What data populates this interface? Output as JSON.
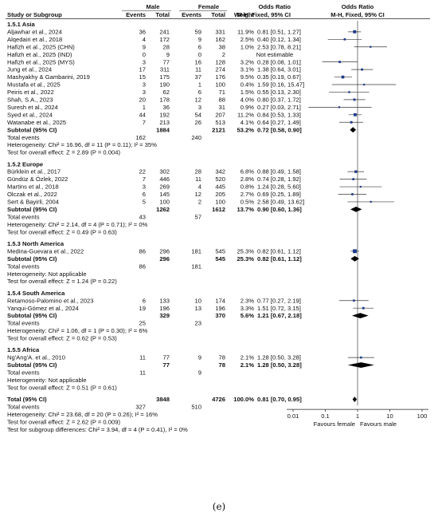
{
  "panel_label": "(e)",
  "chart_data": {
    "type": "forest",
    "scale": "log",
    "xlim": [
      0.01,
      100
    ],
    "ticks": [
      "0.01",
      "0.1",
      "1",
      "10",
      "100"
    ],
    "favours_left": "Favours female",
    "favours_right": "Favours male",
    "headers": {
      "group_male": "Male",
      "group_female": "Female",
      "odds_ratio": "Odds Ratio",
      "study": "Study or Subgroup",
      "events": "Events",
      "total": "Total",
      "weight": "Weight",
      "method": "M-H, Fixed, 95% CI",
      "method_right": "M-H, Fixed, 95% CI"
    },
    "subgroups": [
      {
        "title": "1.5.1 Asia",
        "studies": [
          {
            "name": "Aljawhar et al., 2024",
            "me": "36",
            "mt": "241",
            "fe": "59",
            "ft": "331",
            "w": "11.9%",
            "ci_text": "0.81 [0.51, 1.27]",
            "or": 0.81,
            "lo": 0.51,
            "hi": 1.27
          },
          {
            "name": "Alqedairi et al., 2018",
            "me": "4",
            "mt": "172",
            "fe": "9",
            "ft": "162",
            "w": "2.5%",
            "ci_text": "0.40 [0.12, 1.34]",
            "or": 0.4,
            "lo": 0.12,
            "hi": 1.34
          },
          {
            "name": "Hafizh et al., 2025 (CHN)",
            "me": "9",
            "mt": "28",
            "fe": "6",
            "ft": "38",
            "w": "1.0%",
            "ci_text": "2.53 [0.78, 8.21]",
            "or": 2.53,
            "lo": 0.78,
            "hi": 8.21
          },
          {
            "name": "Hafizh et al., 2025 (IND)",
            "me": "0",
            "mt": "9",
            "fe": "0",
            "ft": "2",
            "w": "",
            "ci_text": "Not estimable",
            "or": null,
            "lo": null,
            "hi": null
          },
          {
            "name": "Hafizh et al., 2025 (MYS)",
            "me": "3",
            "mt": "77",
            "fe": "16",
            "ft": "128",
            "w": "3.2%",
            "ci_text": "0.28 [0.08, 1.01]",
            "or": 0.28,
            "lo": 0.08,
            "hi": 1.01
          },
          {
            "name": "Jung et al., 2024",
            "me": "17",
            "mt": "311",
            "fe": "11",
            "ft": "274",
            "w": "3.1%",
            "ci_text": "1.38 [0.64, 3.01]",
            "or": 1.38,
            "lo": 0.64,
            "hi": 3.01
          },
          {
            "name": "Mashyakhy & Gambarini, 2019",
            "me": "15",
            "mt": "175",
            "fe": "37",
            "ft": "176",
            "w": "9.5%",
            "ci_text": "0.35 [0.19, 0.67]",
            "or": 0.35,
            "lo": 0.19,
            "hi": 0.67
          },
          {
            "name": "Mustafa et al., 2025",
            "me": "3",
            "mt": "190",
            "fe": "1",
            "ft": "100",
            "w": "0.4%",
            "ci_text": "1.59 [0.16, 15.47]",
            "or": 1.59,
            "lo": 0.16,
            "hi": 15.47
          },
          {
            "name": "Peiris et al., 2022",
            "me": "3",
            "mt": "62",
            "fe": "6",
            "ft": "71",
            "w": "1.5%",
            "ci_text": "0.55 [0.13, 2.30]",
            "or": 0.55,
            "lo": 0.13,
            "hi": 2.3
          },
          {
            "name": "Shah, S.A., 2023",
            "me": "20",
            "mt": "178",
            "fe": "12",
            "ft": "88",
            "w": "4.0%",
            "ci_text": "0.80 [0.37, 1.72]",
            "or": 0.8,
            "lo": 0.37,
            "hi": 1.72
          },
          {
            "name": "Suresh et al., 2024",
            "me": "1",
            "mt": "36",
            "fe": "3",
            "ft": "31",
            "w": "0.9%",
            "ci_text": "0.27 [0.03, 2.71]",
            "or": 0.27,
            "lo": 0.03,
            "hi": 2.71
          },
          {
            "name": "Syed et al., 2024",
            "me": "44",
            "mt": "192",
            "fe": "54",
            "ft": "207",
            "w": "11.2%",
            "ci_text": "0.84 [0.53, 1.33]",
            "or": 0.84,
            "lo": 0.53,
            "hi": 1.33
          },
          {
            "name": "Watanabe et al., 2025",
            "me": "7",
            "mt": "213",
            "fe": "26",
            "ft": "513",
            "w": "4.1%",
            "ci_text": "0.64 [0.27, 1.49]",
            "or": 0.64,
            "lo": 0.27,
            "hi": 1.49
          }
        ],
        "subtotal": {
          "label": "Subtotal (95% CI)",
          "mt": "1884",
          "ft": "2121",
          "w": "53.2%",
          "ci_text": "0.72 [0.58, 0.90]",
          "or": 0.72,
          "lo": 0.58,
          "hi": 0.9
        },
        "events": {
          "label": "Total events",
          "male": "162",
          "female": "240"
        },
        "heterogeneity": "Heterogeneity: Chi² = 16.96, df = 11 (P = 0.11); I² = 35%",
        "overall": "Test for overall effect: Z = 2.89 (P = 0.004)"
      },
      {
        "title": "1.5.2 Europe",
        "studies": [
          {
            "name": "Bürklein et al., 2017",
            "me": "22",
            "mt": "302",
            "fe": "28",
            "ft": "342",
            "w": "6.8%",
            "ci_text": "0.88 [0.49, 1.58]",
            "or": 0.88,
            "lo": 0.49,
            "hi": 1.58
          },
          {
            "name": "Gündüz & Özlek, 2022",
            "me": "7",
            "mt": "446",
            "fe": "11",
            "ft": "520",
            "w": "2.8%",
            "ci_text": "0.74 [0.28, 1.92]",
            "or": 0.74,
            "lo": 0.28,
            "hi": 1.92
          },
          {
            "name": "Martins et al., 2018",
            "me": "3",
            "mt": "269",
            "fe": "4",
            "ft": "445",
            "w": "0.8%",
            "ci_text": "1.24 [0.28, 5.60]",
            "or": 1.24,
            "lo": 0.28,
            "hi": 5.6
          },
          {
            "name": "Olczak et al., 2022",
            "me": "6",
            "mt": "145",
            "fe": "12",
            "ft": "205",
            "w": "2.7%",
            "ci_text": "0.69 [0.25, 1.89]",
            "or": 0.69,
            "lo": 0.25,
            "hi": 1.89
          },
          {
            "name": "Sert & Bayirli, 2004",
            "me": "5",
            "mt": "100",
            "fe": "2",
            "ft": "100",
            "w": "0.5%",
            "ci_text": "2.58 [0.49, 13.62]",
            "or": 2.58,
            "lo": 0.49,
            "hi": 13.62
          }
        ],
        "subtotal": {
          "label": "Subtotal (95% CI)",
          "mt": "1262",
          "ft": "1612",
          "w": "13.7%",
          "ci_text": "0.90 [0.60, 1.36]",
          "or": 0.9,
          "lo": 0.6,
          "hi": 1.36
        },
        "events": {
          "label": "Total events",
          "male": "43",
          "female": "57"
        },
        "heterogeneity": "Heterogeneity: Chi² = 2.14, df = 4 (P = 0.71); I² = 0%",
        "overall": "Test for overall effect: Z = 0.49 (P = 0.63)"
      },
      {
        "title": "1.5.3 North America",
        "studies": [
          {
            "name": "Medina-Guevara et al., 2022",
            "me": "86",
            "mt": "296",
            "fe": "181",
            "ft": "545",
            "w": "25.3%",
            "ci_text": "0.82 [0.61, 1.12]",
            "or": 0.82,
            "lo": 0.61,
            "hi": 1.12
          }
        ],
        "subtotal": {
          "label": "Subtotal (95% CI)",
          "mt": "296",
          "ft": "545",
          "w": "25.3%",
          "ci_text": "0.82 [0.61, 1.12]",
          "or": 0.82,
          "lo": 0.61,
          "hi": 1.12
        },
        "events": {
          "label": "Total events",
          "male": "86",
          "female": "181"
        },
        "heterogeneity": "Heterogeneity: Not applicable",
        "overall": "Test for overall effect: Z = 1.24 (P = 0.22)"
      },
      {
        "title": "1.5.4 South America",
        "studies": [
          {
            "name": "Retamoso-Palomino et al., 2023",
            "me": "6",
            "mt": "133",
            "fe": "10",
            "ft": "174",
            "w": "2.3%",
            "ci_text": "0.77 [0.27, 2.19]",
            "or": 0.77,
            "lo": 0.27,
            "hi": 2.19
          },
          {
            "name": "Yanqui-Gómez et al., 2024",
            "me": "19",
            "mt": "196",
            "fe": "13",
            "ft": "196",
            "w": "3.3%",
            "ci_text": "1.51 [0.72, 3.15]",
            "or": 1.51,
            "lo": 0.72,
            "hi": 3.15
          }
        ],
        "subtotal": {
          "label": "Subtotal (95% CI)",
          "mt": "329",
          "ft": "370",
          "w": "5.6%",
          "ci_text": "1.21 [0.67, 2.18]",
          "or": 1.21,
          "lo": 0.67,
          "hi": 2.18
        },
        "events": {
          "label": "Total events",
          "male": "25",
          "female": "23"
        },
        "heterogeneity": "Heterogeneity: Chi² = 1.06, df = 1 (P = 0.30); I² = 6%",
        "overall": "Test for overall effect: Z = 0.62 (P = 0.53)"
      },
      {
        "title": "1.5.5 Africa",
        "studies": [
          {
            "name": "Ng'Ang'A. et al., 2010",
            "me": "11",
            "mt": "77",
            "fe": "9",
            "ft": "78",
            "w": "2.1%",
            "ci_text": "1.28 [0.50, 3.28]",
            "or": 1.28,
            "lo": 0.5,
            "hi": 3.28
          }
        ],
        "subtotal": {
          "label": "Subtotal (95% CI)",
          "mt": "77",
          "ft": "78",
          "w": "2.1%",
          "ci_text": "1.28 [0.50, 3.28]",
          "or": 1.28,
          "lo": 0.5,
          "hi": 3.28
        },
        "events": {
          "label": "Total events",
          "male": "11",
          "female": "9"
        },
        "heterogeneity": "Heterogeneity: Not applicable",
        "overall": "Test for overall effect: Z = 0.51 (P = 0.61)"
      }
    ],
    "total": {
      "label": "Total (95% CI)",
      "mt": "3848",
      "ft": "4726",
      "w": "100.0%",
      "ci_text": "0.81 [0.70, 0.95]",
      "or": 0.81,
      "lo": 0.7,
      "hi": 0.95,
      "events_label": "Total events",
      "events_male": "327",
      "events_female": "510",
      "heterogeneity": "Heterogeneity: Chi² = 23.68, df = 20 (P = 0.26); I² = 16%",
      "overall": "Test for overall effect: Z = 2.62 (P = 0.009)",
      "subgroup_diff": "Test for subgroup differences: Chi² = 3.94, df = 4 (P = 0.41), I² = 0%"
    }
  }
}
